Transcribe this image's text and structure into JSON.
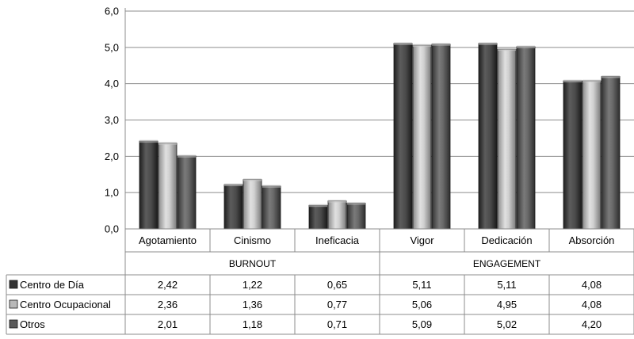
{
  "chart_data": {
    "type": "bar",
    "categories": [
      "Agotamiento",
      "Cinismo",
      "Ineficacia",
      "Vigor",
      "Dedicación",
      "Absorción"
    ],
    "groups": [
      {
        "label": "BURNOUT",
        "span": [
          0,
          2
        ]
      },
      {
        "label": "ENGAGEMENT",
        "span": [
          3,
          5
        ]
      }
    ],
    "series": [
      {
        "name": "Centro de Día",
        "values": [
          2.42,
          1.22,
          0.65,
          5.11,
          5.11,
          4.08
        ],
        "display": [
          "2,42",
          "1,22",
          "0,65",
          "5,11",
          "5,11",
          "4,08"
        ]
      },
      {
        "name": "Centro Ocupacional",
        "values": [
          2.36,
          1.36,
          0.77,
          5.06,
          4.95,
          4.08
        ],
        "display": [
          "2,36",
          "1,36",
          "0,77",
          "5,06",
          "4,95",
          "4,08"
        ]
      },
      {
        "name": "Otros",
        "values": [
          2.01,
          1.18,
          0.71,
          5.09,
          5.02,
          4.2
        ],
        "display": [
          "2,01",
          "1,18",
          "0,71",
          "5,09",
          "5,02",
          "4,20"
        ]
      }
    ],
    "y_ticks": [
      "0,0",
      "1,0",
      "2,0",
      "3,0",
      "4,0",
      "5,0",
      "6,0"
    ],
    "ylim": [
      0,
      6
    ],
    "grid": true,
    "legend": "data-table-left",
    "colors": [
      "#3a3a3a",
      "#b0b0b0",
      "#5e5e5e"
    ]
  }
}
